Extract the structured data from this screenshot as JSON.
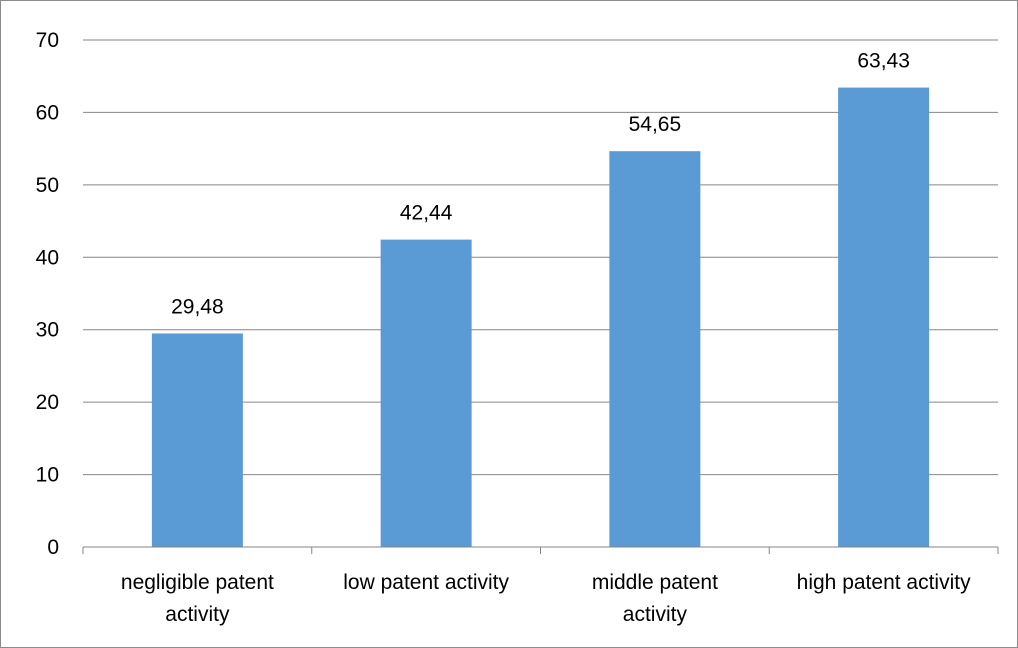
{
  "chart_data": {
    "type": "bar",
    "categories": [
      [
        "negligible patent",
        "activity"
      ],
      [
        "low patent activity"
      ],
      [
        "middle patent",
        "activity"
      ],
      [
        "high patent activity"
      ]
    ],
    "values": [
      29.48,
      42.44,
      54.65,
      63.43
    ],
    "data_labels": [
      "29,48",
      "42,44",
      "54,65",
      "63,43"
    ],
    "y_ticks": [
      "0",
      "10",
      "20",
      "30",
      "40",
      "50",
      "60",
      "70"
    ],
    "ylim": [
      0,
      70
    ],
    "title": "",
    "xlabel": "",
    "ylabel": "",
    "grid": true,
    "legend": "none",
    "colors": {
      "bar": "#5b9bd5",
      "grid": "#868686",
      "axis": "#868686"
    }
  }
}
